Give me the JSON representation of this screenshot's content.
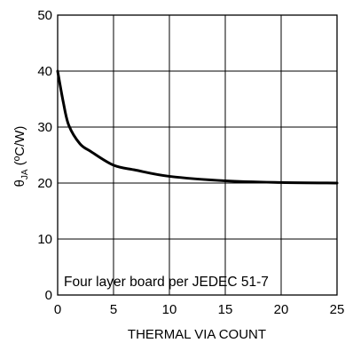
{
  "chart_data": {
    "type": "line",
    "xlabel": "THERMAL VIA COUNT",
    "ylabel_symbol": "θ",
    "ylabel_subscript": "JA",
    "ylabel_unit": " (ºC/W)",
    "xlim": [
      0,
      25
    ],
    "ylim": [
      0,
      50
    ],
    "xticks": [
      0,
      5,
      10,
      15,
      20,
      25
    ],
    "yticks": [
      0,
      10,
      20,
      30,
      40,
      50
    ],
    "xtick_labels": [
      "0",
      "5",
      "10",
      "15",
      "20",
      "25"
    ],
    "ytick_labels": [
      "0",
      "10",
      "20",
      "30",
      "40",
      "50"
    ],
    "grid": true,
    "annotation": "Four layer board per JEDEC 51-7",
    "series": [
      {
        "x": [
          0,
          0.5,
          1,
          2,
          3,
          5,
          7,
          10,
          15,
          20,
          25
        ],
        "y": [
          40,
          34.5,
          30.3,
          27.0,
          25.6,
          23.2,
          22.3,
          21.2,
          20.4,
          20.1,
          20.0
        ]
      }
    ]
  }
}
